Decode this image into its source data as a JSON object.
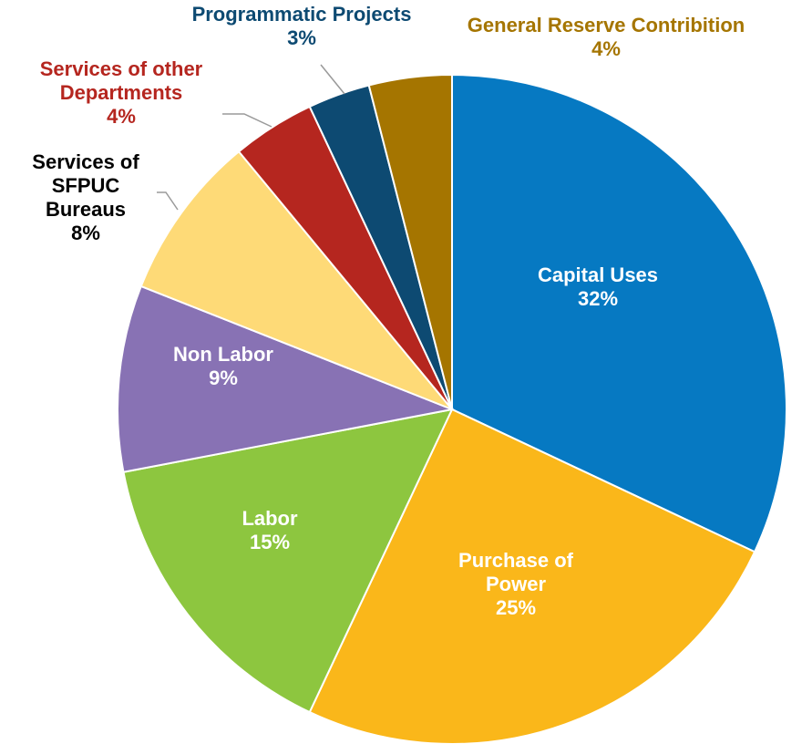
{
  "chart_data": {
    "type": "pie",
    "title": "",
    "slices": [
      {
        "name": "Capital Uses",
        "label_lines": [
          "Capital Uses",
          "32%"
        ],
        "value": 32,
        "color": "#0679C2",
        "label_color": "#FFFFFF"
      },
      {
        "name": "Purchase of Power",
        "label_lines": [
          "Purchase of",
          "Power",
          "25%"
        ],
        "value": 25,
        "color": "#FAB71A",
        "label_color": "#FFFFFF"
      },
      {
        "name": "Labor",
        "label_lines": [
          "Labor",
          "15%"
        ],
        "value": 15,
        "color": "#8DC63F",
        "label_color": "#FFFFFF"
      },
      {
        "name": "Non Labor",
        "label_lines": [
          "Non Labor",
          "9%"
        ],
        "value": 9,
        "color": "#8872B4",
        "label_color": "#FFFFFF"
      },
      {
        "name": "Services of SFPUC Bureaus",
        "label_lines": [
          "Services of",
          "SFPUC",
          "Bureaus",
          "8%"
        ],
        "value": 8,
        "color": "#FEDA77",
        "label_color": "#000000"
      },
      {
        "name": "Services of other Departments",
        "label_lines": [
          "Services of other",
          "Departments",
          "4%"
        ],
        "value": 4,
        "color": "#B5261F",
        "label_color": "#B5261F"
      },
      {
        "name": "Programmatic Projects",
        "label_lines": [
          "Programmatic Projects",
          "3%"
        ],
        "value": 3,
        "color": "#0D4A72",
        "label_color": "#0D4A72"
      },
      {
        "name": "General Reserve Contribition",
        "label_lines": [
          "General Reserve Contribition",
          "4%"
        ],
        "value": 4,
        "color": "#A57500",
        "label_color": "#A57500"
      }
    ]
  }
}
